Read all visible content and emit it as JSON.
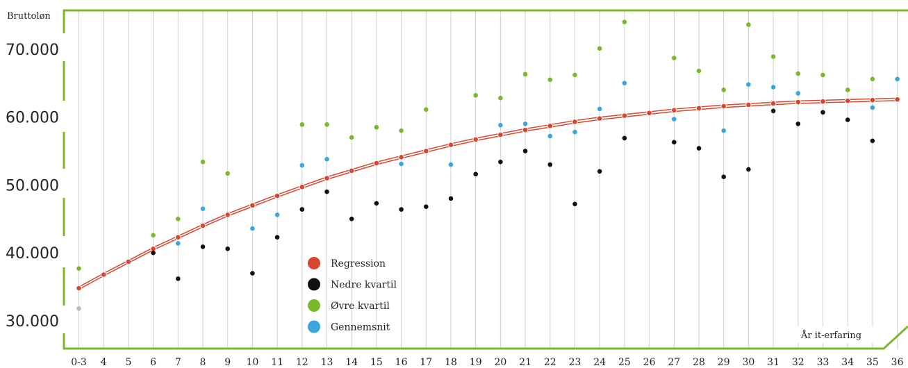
{
  "chart_data": {
    "type": "scatter",
    "ylabel": "Bruttoløn",
    "xlabel": "År it-erfaring",
    "ylim": [
      26000,
      75500
    ],
    "yticks": [
      30000,
      40000,
      50000,
      60000,
      70000
    ],
    "ytick_labels": [
      "30.000",
      "40.000",
      "50.000",
      "60.000",
      "70.000"
    ],
    "categories": [
      "0-3",
      "4",
      "5",
      "6",
      "7",
      "8",
      "9",
      "10",
      "11",
      "12",
      "13",
      "14",
      "15",
      "16",
      "17",
      "18",
      "19",
      "20",
      "21",
      "22",
      "23",
      "24",
      "25",
      "26",
      "27",
      "28",
      "29",
      "30",
      "31",
      "32",
      "33",
      "34",
      "35",
      "36"
    ],
    "grid": true,
    "legend_position": "center-left",
    "colors": {
      "regression": "#d9452e",
      "nedre": "#111111",
      "ovre": "#7ab929",
      "gennemsnit": "#3aa7dc",
      "frame": "#7ab929",
      "grid": "#cfcfcf",
      "outlier": "#bbbbbb"
    },
    "series": [
      {
        "name": "Regression",
        "key": "regression",
        "values": [
          34800,
          36800,
          38700,
          40600,
          42300,
          44000,
          45600,
          47000,
          48400,
          49700,
          51000,
          52100,
          53200,
          54100,
          55000,
          55900,
          56700,
          57400,
          58100,
          58700,
          59300,
          59800,
          60200,
          60600,
          61000,
          61300,
          61600,
          61800,
          62000,
          62200,
          62300,
          62400,
          62500,
          62600
        ]
      },
      {
        "name": "Nedre kvartil",
        "key": "nedre",
        "values": [
          null,
          null,
          null,
          40000,
          36200,
          40900,
          40600,
          37000,
          42300,
          46400,
          49000,
          45000,
          47300,
          46400,
          46800,
          48000,
          51600,
          53400,
          55000,
          53000,
          47200,
          52000,
          56900,
          null,
          56300,
          55400,
          51200,
          52300,
          60900,
          59000,
          60700,
          59600,
          56500,
          null
        ]
      },
      {
        "name": "Øvre kvartil",
        "key": "ovre",
        "values": [
          37700,
          null,
          null,
          42600,
          45000,
          53400,
          51700,
          null,
          null,
          58900,
          58900,
          57000,
          58500,
          58000,
          61100,
          null,
          63200,
          62800,
          66300,
          65500,
          66200,
          70100,
          74000,
          null,
          68700,
          66800,
          64000,
          73600,
          68900,
          66400,
          66200,
          64000,
          65600,
          null
        ]
      },
      {
        "name": "Gennemsnit",
        "key": "gennemsnit",
        "values": [
          null,
          null,
          null,
          null,
          41400,
          46500,
          null,
          43600,
          45600,
          52900,
          53800,
          null,
          null,
          53100,
          null,
          53000,
          null,
          58800,
          59000,
          57200,
          57800,
          61200,
          65000,
          null,
          59700,
          null,
          58000,
          64800,
          64400,
          63500,
          null,
          null,
          61400,
          65600
        ]
      }
    ],
    "extra_points": [
      {
        "x": "0-3",
        "y": 31800,
        "color": "outlier"
      }
    ],
    "regression_band": {
      "upper_offset": 180,
      "lower_offset": -180
    }
  }
}
